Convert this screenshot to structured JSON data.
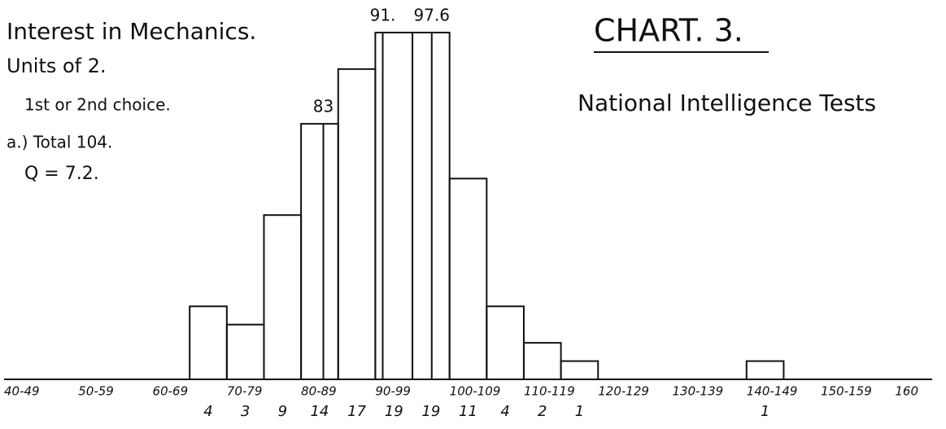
{
  "chart_data": {
    "type": "histogram",
    "title": "CHART. 3.",
    "subtitle": "National Intelligence Tests",
    "annotations": [
      "Interest in Mechanics.",
      "Units of 2.",
      "1st or 2nd choice.",
      "a.) Total 104.",
      "Q = 7.2."
    ],
    "bins": [
      65,
      70,
      75,
      80,
      85,
      90,
      95,
      100,
      105,
      110,
      115,
      120,
      125,
      130,
      135,
      140,
      145
    ],
    "values": [
      4,
      3,
      9,
      14,
      17,
      19,
      19,
      11,
      4,
      2,
      1,
      0,
      0,
      0,
      0,
      1
    ],
    "color": "#111111",
    "markers": [
      {
        "value": 83,
        "label": "83"
      },
      {
        "value": 91,
        "label": "91."
      },
      {
        "value": 97.6,
        "label": "97.6"
      }
    ],
    "xlim": [
      40,
      165
    ],
    "xticks": [
      {
        "value": 40,
        "label": "40-49"
      },
      {
        "value": 50,
        "label": "50-59"
      },
      {
        "value": 60,
        "label": "60-69"
      },
      {
        "value": 70,
        "label": "70-79"
      },
      {
        "value": 80,
        "label": "80-89"
      },
      {
        "value": 90,
        "label": "90-99"
      },
      {
        "value": 100,
        "label": "100-109"
      },
      {
        "value": 110,
        "label": "110-119"
      },
      {
        "value": 120,
        "label": "120-129"
      },
      {
        "value": 130,
        "label": "130-139"
      },
      {
        "value": 140,
        "label": "140-149"
      },
      {
        "value": 150,
        "label": "150-159"
      },
      160
    ],
    "ylim": [
      0,
      19
    ]
  }
}
